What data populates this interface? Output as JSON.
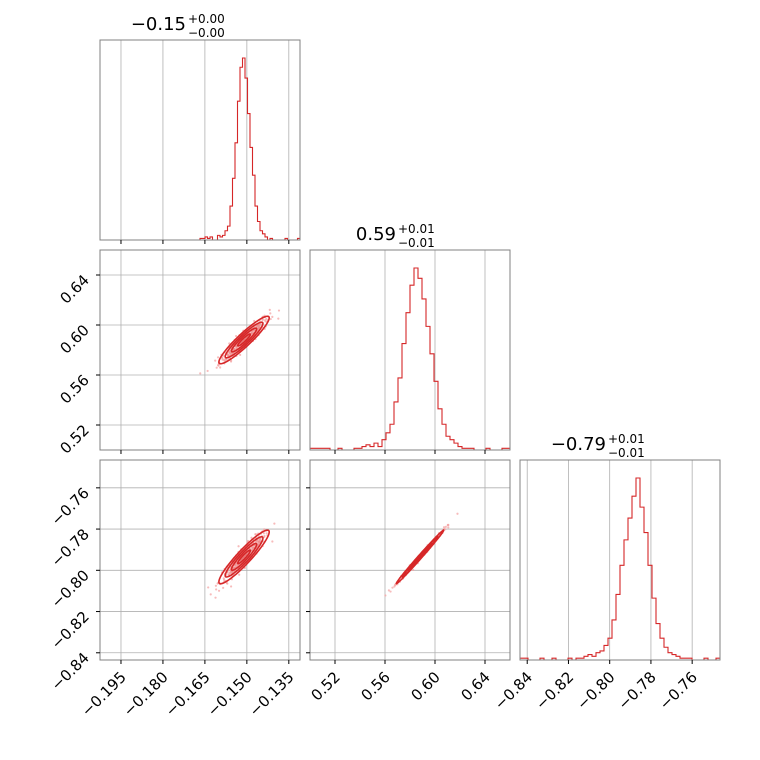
{
  "chart_data": {
    "type": "corner",
    "color": "#d62728",
    "scatter_color": "#f4a4a4",
    "parameters": [
      {
        "name": "p0",
        "range": [
          -0.2025,
          -0.131
        ],
        "ticks": [
          -0.195,
          -0.18,
          -0.165,
          -0.15,
          -0.135
        ],
        "tick_labels": [
          "−0.195",
          "−0.180",
          "−0.165",
          "−0.150",
          "−0.135"
        ],
        "title": {
          "value": "−0.15",
          "upper": "+0.00",
          "lower": "−0.00"
        },
        "median": -0.151,
        "sigma": 0.0045
      },
      {
        "name": "p1",
        "range": [
          0.5,
          0.66
        ],
        "ticks": [
          0.52,
          0.56,
          0.6,
          0.64
        ],
        "tick_labels": [
          "0.52",
          "0.56",
          "0.60",
          "0.64"
        ],
        "title": {
          "value": "0.59",
          "upper": "+0.01",
          "lower": "−0.01"
        },
        "median": 0.588,
        "sigma": 0.0095
      },
      {
        "name": "p2",
        "range": [
          -0.8435,
          -0.7465
        ],
        "ticks": [
          -0.84,
          -0.82,
          -0.8,
          -0.78,
          -0.76
        ],
        "tick_labels": [
          "−0.84",
          "−0.82",
          "−0.80",
          "−0.78",
          "−0.76"
        ],
        "title": {
          "value": "−0.79",
          "upper": "+0.01",
          "lower": "−0.01"
        },
        "median": -0.7935,
        "sigma": 0.0065
      }
    ],
    "histograms": [
      [
        0,
        0,
        0,
        0,
        0,
        0,
        0,
        0,
        0,
        0,
        0,
        0,
        0,
        0,
        0,
        0,
        0,
        0,
        0,
        0,
        0,
        0,
        0,
        0,
        0,
        0,
        0,
        0,
        0,
        0,
        0,
        0,
        0,
        0,
        0,
        0,
        0,
        0,
        0,
        0,
        1,
        1,
        2,
        1,
        2,
        0,
        0,
        3,
        2,
        3,
        6,
        9,
        22,
        40,
        63,
        90,
        112,
        118,
        105,
        82,
        60,
        42,
        22,
        12,
        6,
        4,
        2,
        0,
        1,
        0,
        0,
        0,
        0,
        0,
        1,
        0,
        0,
        0,
        0,
        1
      ],
      [
        1,
        1,
        1,
        1,
        1,
        0,
        0,
        1,
        0,
        0,
        0,
        1,
        1,
        2,
        3,
        2,
        4,
        2,
        6,
        10,
        15,
        28,
        42,
        62,
        80,
        96,
        106,
        100,
        88,
        72,
        56,
        40,
        24,
        15,
        8,
        6,
        4,
        2,
        1,
        1,
        1,
        0,
        0,
        0,
        1,
        0,
        0,
        0,
        1,
        1
      ],
      [
        1,
        1,
        0,
        0,
        0,
        1,
        0,
        0,
        1,
        0,
        0,
        0,
        1,
        0,
        1,
        1,
        2,
        3,
        2,
        4,
        5,
        8,
        12,
        22,
        36,
        52,
        66,
        78,
        90,
        100,
        84,
        70,
        52,
        34,
        20,
        12,
        7,
        4,
        3,
        2,
        1,
        1,
        1,
        0,
        0,
        0,
        1,
        0,
        0,
        1
      ]
    ],
    "grid": true
  }
}
